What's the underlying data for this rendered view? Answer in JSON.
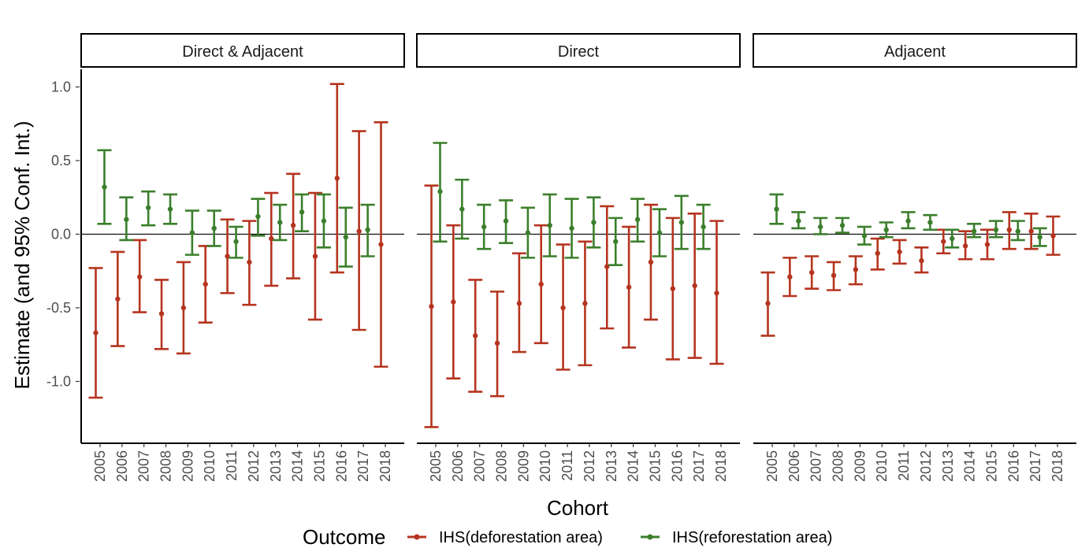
{
  "chart_data": {
    "type": "errorbar",
    "facets": [
      "Direct & Adjacent",
      "Direct",
      "Adjacent"
    ],
    "xlabel": "Cohort",
    "ylabel": "Estimate (and 95% Conf. Int.)",
    "ylim": [
      -1.42,
      1.12
    ],
    "y_ticks": [
      1.0,
      0.5,
      0.0,
      -0.5,
      -1.0
    ],
    "y_tick_labels": [
      "1.0",
      "0.5",
      "0.0",
      "-0.5",
      "-1.0"
    ],
    "categories": [
      "2005",
      "2006",
      "2007",
      "2008",
      "2009",
      "2010",
      "2011",
      "2012",
      "2013",
      "2014",
      "2015",
      "2016",
      "2017",
      "2018"
    ],
    "reference_line": 0,
    "legend": {
      "title": "Outcome",
      "position": "bottom",
      "entries": [
        "IHS(deforestation area)",
        "IHS(reforestation area)"
      ]
    },
    "colors": {
      "deforestation": "#b5341f",
      "reforestation": "#3b7f2c"
    },
    "panels": [
      {
        "name": "Direct & Adjacent",
        "series": [
          {
            "key": "deforestation",
            "estimate": [
              -0.67,
              -0.44,
              -0.29,
              -0.54,
              -0.5,
              -0.34,
              -0.15,
              -0.19,
              -0.03,
              0.06,
              -0.15,
              0.38,
              0.02,
              -0.07
            ],
            "lower": [
              -1.11,
              -0.76,
              -0.53,
              -0.78,
              -0.81,
              -0.6,
              -0.4,
              -0.48,
              -0.35,
              -0.3,
              -0.58,
              -0.26,
              -0.65,
              -0.9
            ],
            "upper": [
              -0.23,
              -0.12,
              -0.04,
              -0.31,
              -0.19,
              -0.08,
              0.1,
              0.09,
              0.28,
              0.41,
              0.28,
              1.02,
              0.7,
              0.76
            ]
          },
          {
            "key": "reforestation",
            "estimate": [
              0.32,
              0.1,
              0.18,
              0.17,
              0.01,
              0.04,
              -0.05,
              0.12,
              0.08,
              0.15,
              0.09,
              -0.02,
              0.03
            ],
            "lower": [
              0.07,
              -0.04,
              0.06,
              0.07,
              -0.14,
              -0.08,
              -0.16,
              -0.01,
              -0.04,
              0.02,
              -0.09,
              -0.22,
              -0.15
            ],
            "upper": [
              0.57,
              0.25,
              0.29,
              0.27,
              0.16,
              0.16,
              0.05,
              0.24,
              0.2,
              0.27,
              0.27,
              0.18,
              0.2
            ]
          }
        ]
      },
      {
        "name": "Direct",
        "series": [
          {
            "key": "deforestation",
            "estimate": [
              -0.49,
              -0.46,
              -0.69,
              -0.74,
              -0.47,
              -0.34,
              -0.5,
              -0.47,
              -0.22,
              -0.36,
              -0.19,
              -0.37,
              -0.35,
              -0.4
            ],
            "lower": [
              -1.31,
              -0.98,
              -1.07,
              -1.1,
              -0.8,
              -0.74,
              -0.92,
              -0.89,
              -0.64,
              -0.77,
              -0.58,
              -0.85,
              -0.84,
              -0.88
            ],
            "upper": [
              0.33,
              0.06,
              -0.31,
              -0.39,
              -0.13,
              0.06,
              -0.07,
              -0.05,
              0.19,
              0.05,
              0.2,
              0.11,
              0.14,
              0.09
            ]
          },
          {
            "key": "reforestation",
            "estimate": [
              0.29,
              0.17,
              0.05,
              0.09,
              0.01,
              0.06,
              0.04,
              0.08,
              -0.05,
              0.1,
              0.01,
              0.08,
              0.05
            ],
            "lower": [
              -0.05,
              -0.03,
              -0.1,
              -0.06,
              -0.16,
              -0.15,
              -0.16,
              -0.09,
              -0.21,
              -0.05,
              -0.15,
              -0.1,
              -0.1
            ],
            "upper": [
              0.62,
              0.37,
              0.2,
              0.23,
              0.18,
              0.27,
              0.24,
              0.25,
              0.11,
              0.24,
              0.17,
              0.26,
              0.2
            ]
          }
        ]
      },
      {
        "name": "Adjacent",
        "series": [
          {
            "key": "deforestation",
            "estimate": [
              -0.47,
              -0.29,
              -0.26,
              -0.28,
              -0.24,
              -0.13,
              -0.12,
              -0.18,
              -0.05,
              -0.08,
              -0.07,
              0.03,
              0.02,
              -0.01
            ],
            "lower": [
              -0.69,
              -0.42,
              -0.37,
              -0.38,
              -0.34,
              -0.24,
              -0.2,
              -0.26,
              -0.13,
              -0.17,
              -0.17,
              -0.1,
              -0.1,
              -0.14
            ],
            "upper": [
              -0.26,
              -0.16,
              -0.15,
              -0.19,
              -0.15,
              -0.03,
              -0.04,
              -0.09,
              0.03,
              0.02,
              0.03,
              0.15,
              0.14,
              0.12
            ]
          },
          {
            "key": "reforestation",
            "estimate": [
              0.17,
              0.09,
              0.05,
              0.06,
              -0.01,
              0.03,
              0.09,
              0.08,
              -0.03,
              0.02,
              0.03,
              0.02,
              -0.02
            ],
            "lower": [
              0.07,
              0.04,
              0.0,
              0.01,
              -0.07,
              -0.02,
              0.04,
              0.03,
              -0.09,
              -0.02,
              -0.02,
              -0.04,
              -0.08
            ],
            "upper": [
              0.27,
              0.15,
              0.11,
              0.11,
              0.05,
              0.08,
              0.15,
              0.13,
              0.03,
              0.07,
              0.09,
              0.09,
              0.04
            ]
          }
        ]
      }
    ]
  }
}
